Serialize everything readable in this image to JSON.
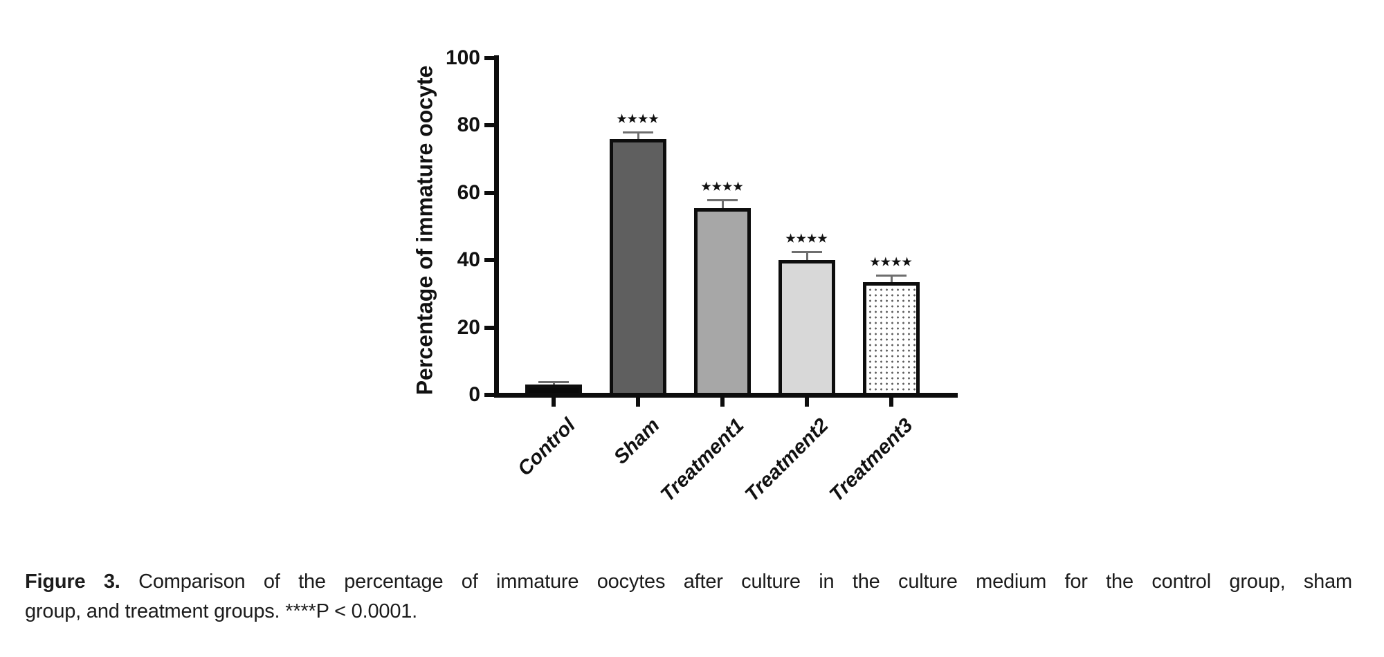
{
  "page": {
    "background": "#ffffff"
  },
  "caption": {
    "label": "Figure 3.",
    "line1": "Comparison of the percentage of immature oocytes after culture in the culture medium for the control group, sham",
    "line2": "group, and treatment groups. ****P < 0.0001."
  },
  "chart_data": {
    "type": "bar",
    "title": "",
    "ylabel": "Percentage of immature oocyte",
    "xlabel": "",
    "ylim": [
      0,
      100
    ],
    "yticks": [
      0,
      20,
      40,
      60,
      80,
      100
    ],
    "categories": [
      "Control",
      "Sham",
      "Treatment1",
      "Treatment2",
      "Treatment3"
    ],
    "values": [
      3,
      76,
      55.5,
      40,
      33.5
    ],
    "errors_upper": [
      1,
      2,
      2.5,
      2.5,
      2
    ],
    "error_style": "upper error bars with caps",
    "significance": [
      "",
      "****",
      "****",
      "****",
      "****"
    ],
    "bar_fills": [
      "#0a0a0a",
      "#5f5f5f",
      "#a7a7a7",
      "#d8d8d8",
      "pattern:dots"
    ],
    "bar_border_color": "#0d0d0d",
    "error_bar_color": "#6e6e6e",
    "axis_color": "#0d0d0d",
    "grid": false,
    "legend": null,
    "x_tick_label_rotation_deg": 45
  }
}
